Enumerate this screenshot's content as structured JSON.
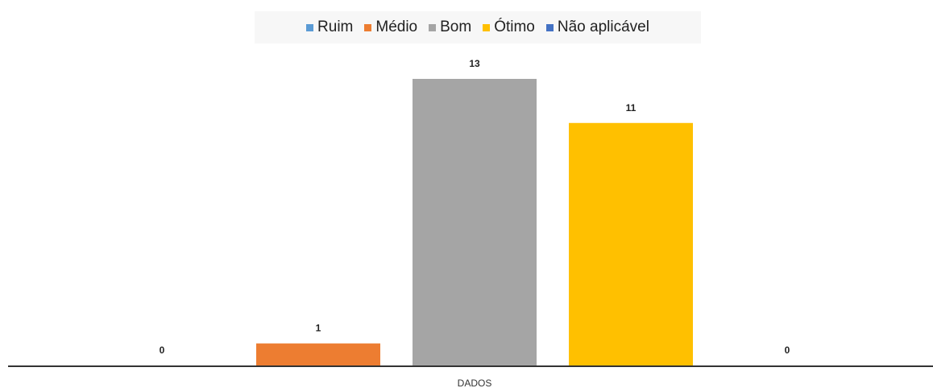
{
  "chart_data": {
    "type": "bar",
    "title": "",
    "xlabel": "",
    "ylabel": "",
    "categories": [
      "DADOS"
    ],
    "series": [
      {
        "name": "Ruim",
        "values": [
          0
        ],
        "color": "#5b9bd5"
      },
      {
        "name": "Médio",
        "values": [
          1
        ],
        "color": "#ed7d31"
      },
      {
        "name": "Bom",
        "values": [
          13
        ],
        "color": "#a5a5a5"
      },
      {
        "name": "Ótimo",
        "values": [
          11
        ],
        "color": "#ffc000"
      },
      {
        "name": "Não aplicável",
        "values": [
          0
        ],
        "color": "#4472c4"
      }
    ],
    "ylim": [
      0,
      13
    ],
    "grid": false,
    "legend_position": "top",
    "data_labels": true
  }
}
